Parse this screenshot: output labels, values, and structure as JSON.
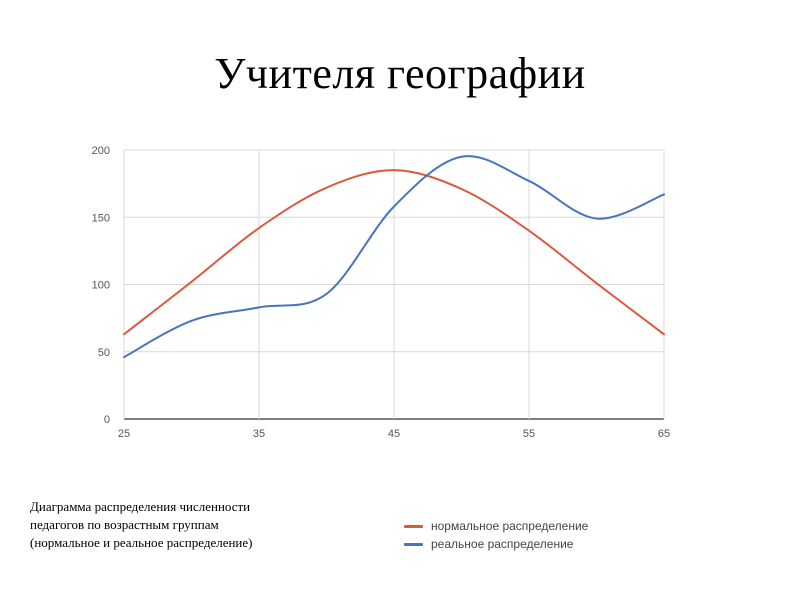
{
  "slide": {
    "title": "Учителя географии",
    "caption": [
      "Диаграмма распределения численности",
      "педагогов по возрастным группам",
      "(нормальное и реальное распределение)"
    ]
  },
  "chart_data": {
    "type": "line",
    "title": "",
    "xlabel": "",
    "ylabel": "",
    "xlim": [
      25,
      65
    ],
    "ylim": [
      0,
      200
    ],
    "xticks": [
      25,
      35,
      45,
      55,
      65
    ],
    "yticks": [
      0,
      50,
      100,
      150,
      200
    ],
    "grid": true,
    "legend_position": "bottom-right",
    "series": [
      {
        "name": "нормальное распределение",
        "color": "#dc5a3c",
        "x": [
          25,
          30,
          35,
          40,
          45,
          50,
          55,
          60,
          65
        ],
        "y": [
          63,
          102,
          142,
          172,
          185,
          171,
          140,
          101,
          63
        ]
      },
      {
        "name": "реальное распределение",
        "color": "#4a73c0",
        "x": [
          25,
          30,
          35,
          40,
          45,
          50,
          55,
          60,
          65
        ],
        "y": [
          46,
          73,
          83,
          93,
          158,
          195,
          177,
          149,
          167
        ]
      }
    ]
  }
}
